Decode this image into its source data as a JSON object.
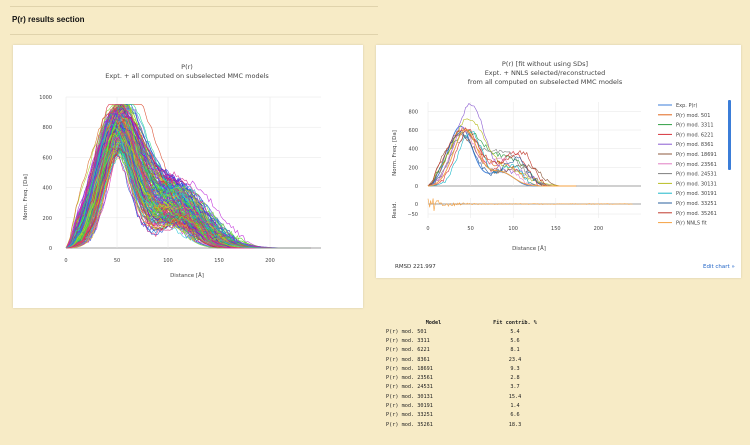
{
  "section": {
    "title": "P(r) results section"
  },
  "chart_left": {
    "title_line1": "P(r)",
    "title_line2": "Expt. + all computed on subselected MMC models",
    "xlabel": "Distance [Å]",
    "ylabel": "Norm. Freq. [Da]",
    "xticks": [
      "0",
      "50",
      "100",
      "150",
      "200"
    ],
    "yticks": [
      "0",
      "200",
      "400",
      "600",
      "800",
      "1000"
    ]
  },
  "chart_right": {
    "title_line1": "P(r) [fit without using SDs]",
    "title_line2": "Expt. + NNLS selected/reconstructed",
    "title_line3": "from all computed on subselected MMC models",
    "xlabel": "Distance [Å]",
    "ylabel_top": "Norm. Freq. [Da]",
    "ylabel_bottom": "Resid.",
    "xticks": [
      "0",
      "50",
      "100",
      "150",
      "200"
    ],
    "yticks_top": [
      "0",
      "200",
      "400",
      "600",
      "800"
    ],
    "yticks_bottom": [
      "0",
      "−50"
    ],
    "legend": [
      {
        "label": "Exp. P(r)",
        "color": "#3b7dd8"
      },
      {
        "label": "P(r) mod. 501",
        "color": "#e0661b"
      },
      {
        "label": "P(r) mod. 3311",
        "color": "#2f9e44"
      },
      {
        "label": "P(r) mod. 6221",
        "color": "#d6333b"
      },
      {
        "label": "P(r) mod. 8361",
        "color": "#8a5bd1"
      },
      {
        "label": "P(r) mod. 18691",
        "color": "#8c5a3c"
      },
      {
        "label": "P(r) mod. 23561",
        "color": "#e07cc3"
      },
      {
        "label": "P(r) mod. 24531",
        "color": "#7f7f7f"
      },
      {
        "label": "P(r) mod. 30131",
        "color": "#b8bd22"
      },
      {
        "label": "P(r) mod. 30191",
        "color": "#1bb7c9"
      },
      {
        "label": "P(r) mod. 33251",
        "color": "#2a5f9e"
      },
      {
        "label": "P(r) mod. 35261",
        "color": "#c0392b"
      },
      {
        "label": "P(r) NNLS fit",
        "color": "#f5a040"
      }
    ],
    "rmsd": "RMSD 221.997",
    "edit_link": "Edit chart »"
  },
  "fit_table": {
    "headers": [
      "Model",
      "Fit contrib. %"
    ],
    "rows": [
      [
        "P(r) mod. 501",
        "5.4"
      ],
      [
        "P(r) mod. 3311",
        "5.6"
      ],
      [
        "P(r) mod. 6221",
        "8.1"
      ],
      [
        "P(r) mod. 8361",
        "23.4"
      ],
      [
        "P(r) mod. 18691",
        "9.3"
      ],
      [
        "P(r) mod. 23561",
        "2.8"
      ],
      [
        "P(r) mod. 24531",
        "3.7"
      ],
      [
        "P(r) mod. 30131",
        "15.4"
      ],
      [
        "P(r) mod. 30191",
        "1.4"
      ],
      [
        "P(r) mod. 33251",
        "6.6"
      ],
      [
        "P(r) mod. 35261",
        "18.3"
      ]
    ]
  },
  "chart_data": [
    {
      "type": "line",
      "xlim": [
        0,
        250
      ],
      "ylim": [
        0,
        1000
      ],
      "series_count_approx": 200,
      "peak_distance": 50,
      "peak_value_range": [
        680,
        950
      ],
      "shoulder_distance": 100,
      "max_distance_range": [
        150,
        240
      ]
    },
    {
      "type": "line",
      "xlim": [
        0,
        250
      ],
      "ylim": [
        0,
        900
      ],
      "resid_ylim": [
        -70,
        30
      ],
      "fit_contributions": {
        "P(r) mod. 501": 5.4,
        "P(r) mod. 3311": 5.6,
        "P(r) mod. 6221": 8.1,
        "P(r) mod. 8361": 23.4,
        "P(r) mod. 18691": 9.3,
        "P(r) mod. 23561": 2.8,
        "P(r) mod. 24531": 3.7,
        "P(r) mod. 30131": 15.4,
        "P(r) mod. 30191": 1.4,
        "P(r) mod. 33251": 6.6,
        "P(r) mod. 35261": 18.3
      },
      "peak_distance": 45,
      "peak_value_range": [
        520,
        870
      ],
      "max_distance_range": [
        120,
        175
      ]
    }
  ]
}
